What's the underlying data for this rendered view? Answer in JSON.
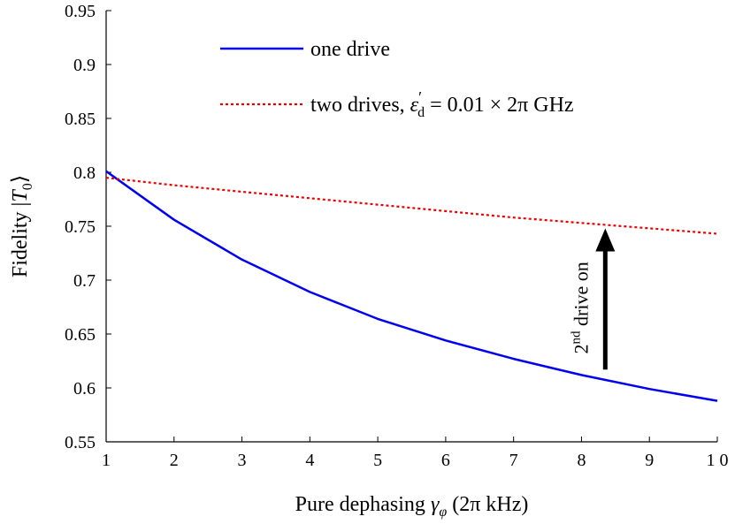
{
  "chart_data": {
    "type": "line",
    "xlabel": "Pure dephasing γ_φ (2π kHz)",
    "xlabel_parts": {
      "prefix": "Pure dephasing ",
      "symbol": "γ",
      "sub": "φ",
      "suffix": " (2π kHz)"
    },
    "ylabel": "Fidelity |T_0⟩",
    "ylabel_parts": {
      "prefix": "Fidelity |",
      "symbol": "T",
      "sub": "0",
      "suffix": "⟩"
    },
    "xlim": [
      1,
      10
    ],
    "ylim": [
      0.55,
      0.95
    ],
    "xticks": [
      1,
      2,
      3,
      4,
      5,
      6,
      7,
      8,
      9,
      10
    ],
    "xtick_labels": [
      "1",
      "2",
      "3",
      "4",
      "5",
      "6",
      "7",
      "8",
      "9",
      "1 0"
    ],
    "yticks": [
      0.55,
      0.6,
      0.65,
      0.7,
      0.75,
      0.8,
      0.85,
      0.9,
      0.95
    ],
    "ytick_labels": [
      "0.55",
      "0.6",
      "0.65",
      "0.7",
      "0.75",
      "0.8",
      "0.85",
      "0.9",
      "0.95"
    ],
    "grid": false,
    "legend_position": "top",
    "series": [
      {
        "name": "one drive",
        "color": "#0000ee",
        "style": "solid",
        "x": [
          1,
          2,
          3,
          4,
          5,
          6,
          7,
          8,
          9,
          10
        ],
        "y": [
          0.801,
          0.756,
          0.719,
          0.689,
          0.664,
          0.644,
          0.627,
          0.612,
          0.599,
          0.588
        ]
      },
      {
        "name": "two drives, ε′_d = 0.01 × 2π GHz",
        "name_parts": {
          "prefix": "two drives, ",
          "symbol": "ε",
          "prime": "′",
          "sub": "d",
          "suffix": " = 0.01 × 2π GHz"
        },
        "color": "#ee0000",
        "style": "dotted",
        "x": [
          1,
          2,
          3,
          4,
          5,
          6,
          7,
          8,
          9,
          10
        ],
        "y": [
          0.795,
          0.788,
          0.782,
          0.776,
          0.77,
          0.764,
          0.758,
          0.753,
          0.748,
          0.743
        ]
      }
    ],
    "annotation": {
      "text_base": "2",
      "text_sup": "nd",
      "text_rest": " drive on",
      "arrow_x": 8.35,
      "arrow_y_from": 0.617,
      "arrow_y_to": 0.748
    }
  }
}
